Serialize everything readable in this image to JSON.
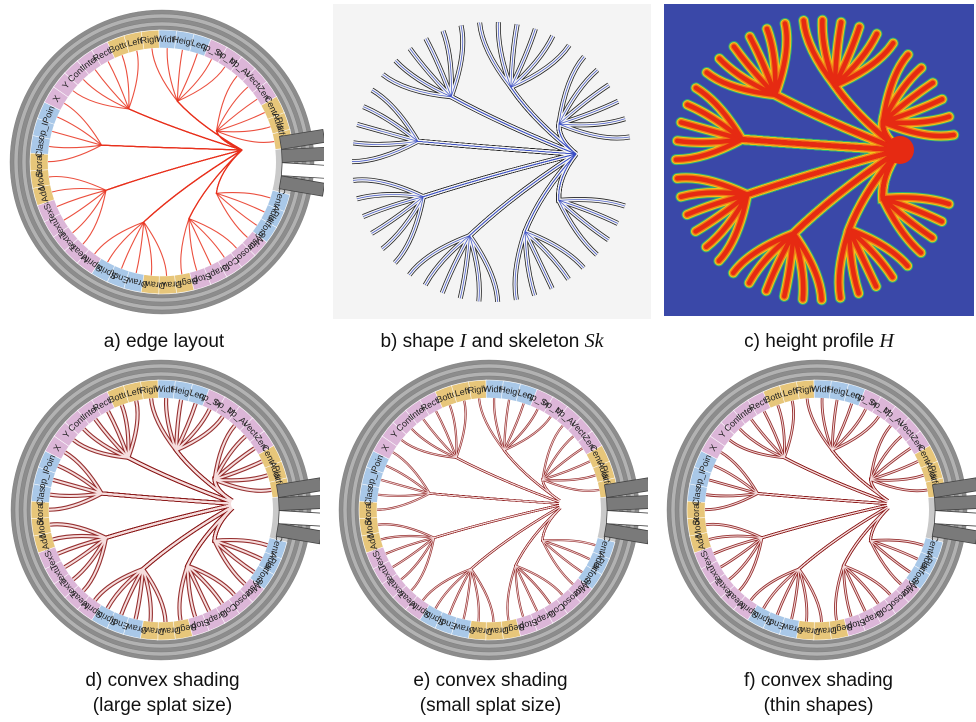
{
  "figure": {
    "panels": [
      {
        "id": "a",
        "caption": "a) edge layout"
      },
      {
        "id": "b",
        "caption_pre": "b) shape ",
        "caption_sym1": "I",
        "caption_mid": " and skeleton ",
        "caption_sym2": "Sk"
      },
      {
        "id": "c",
        "caption_pre": "c) height profile ",
        "caption_sym1": "H"
      },
      {
        "id": "d",
        "caption": "d) convex shading",
        "caption2": "(large splat size)"
      },
      {
        "id": "e",
        "caption": "e) convex shading",
        "caption2": "(small splat size)"
      },
      {
        "id": "f",
        "caption": "f) convex shading",
        "caption2": "(thin shapes)"
      }
    ],
    "ring_labels": [
      "Center",
      "Audio",
      "Platformer1",
      "System",
      "Microsoft.XN",
      "Color",
      "Graphic",
      "Stop()",
      "Begin()",
      "DrawSt",
      "DrawCl",
      "Draw()",
      "End()",
      "SpriteB",
      "SpriteE",
      "Measur",
      "Texture",
      "Texture",
      "TexSal",
      "Add",
      "Model",
      "Storage",
      "Classi",
      "op_In",
      "Point",
      "X",
      "Y",
      "Contr",
      "Inter",
      "Recta",
      "Botto",
      "Left",
      "Right",
      "Width",
      "Heigh",
      "Lerp",
      "op_Sub",
      "op_Mul",
      "op_Add",
      "Vecto",
      "Zero"
    ],
    "colors": {
      "ring_blue": "#a9c8e8",
      "ring_pink": "#dcb6d8",
      "ring_gold": "#e7c67a",
      "ring_gray": "#9a9a9a",
      "edge_red": "#e8301c",
      "bundle_dark": "#8b1a1a",
      "height_bg": "#3a48a8"
    }
  }
}
